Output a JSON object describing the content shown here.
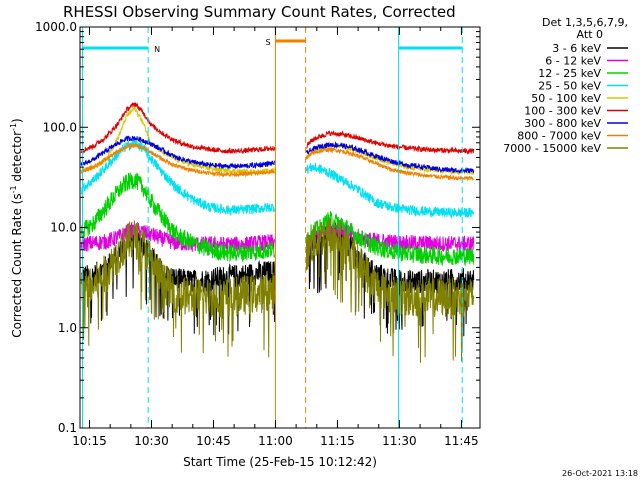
{
  "chart_data": {
    "type": "line",
    "title": "RHESSI Observing Summary Count Rates, Corrected",
    "xlabel": "Start Time (25-Feb-15 10:12:42)",
    "ylabel_parts": [
      "Corrected Count Rate (s",
      "-1",
      " detector",
      "-1",
      ")"
    ],
    "y_scale": "log",
    "ylim": [
      0.1,
      1000
    ],
    "xlim_minutes_after_10_00": [
      12.7,
      49.5
    ],
    "x_ticks": [
      {
        "minute": 15,
        "label": "10:15"
      },
      {
        "minute": 30,
        "label": "10:30"
      },
      {
        "minute": 45,
        "label": "10:45"
      },
      {
        "minute": 60,
        "label": "11:00"
      },
      {
        "minute": 75,
        "label": "11:15"
      },
      {
        "minute": 90,
        "label": "11:30"
      },
      {
        "minute": 105,
        "label": "11:45"
      }
    ],
    "y_ticks": [
      {
        "value": 0.1,
        "label": "0.1"
      },
      {
        "value": 1,
        "label": "1.0"
      },
      {
        "value": 10,
        "label": "10.0"
      },
      {
        "value": 100,
        "label": "100.0"
      },
      {
        "value": 1000,
        "label": "1000.0"
      }
    ],
    "legend_header": [
      "Det 1,3,5,6,7,9,",
      "Att 0"
    ],
    "timestamp": "26-Oct-2021 13:18",
    "data_gap_minutes": [
      59.8,
      67.5
    ],
    "series": [
      {
        "name": "3 - 6 keV",
        "color": "#000000",
        "points": [
          [
            13,
            3.2
          ],
          [
            16,
            3.3
          ],
          [
            19,
            4
          ],
          [
            22,
            5.5
          ],
          [
            24,
            7
          ],
          [
            26,
            8
          ],
          [
            28,
            7
          ],
          [
            30,
            5
          ],
          [
            33,
            3.4
          ],
          [
            36,
            3
          ],
          [
            40,
            2.9
          ],
          [
            44,
            3
          ],
          [
            48,
            3.2
          ],
          [
            52,
            3.3
          ],
          [
            56,
            3.5
          ],
          [
            59.8,
            3.6
          ],
          [
            67.5,
            6
          ],
          [
            69,
            7
          ],
          [
            71,
            8
          ],
          [
            73,
            9
          ],
          [
            76,
            8.5
          ],
          [
            80,
            5
          ],
          [
            84,
            3.5
          ],
          [
            88,
            3
          ],
          [
            92,
            2.9
          ],
          [
            96,
            2.9
          ],
          [
            100,
            2.9
          ],
          [
            104,
            3
          ],
          [
            108,
            3
          ]
        ]
      },
      {
        "name": "6 - 12 keV",
        "color": "#e000e0",
        "points": [
          [
            13,
            6.8
          ],
          [
            16,
            7
          ],
          [
            19,
            7.2
          ],
          [
            22,
            8
          ],
          [
            24,
            9
          ],
          [
            26,
            9.5
          ],
          [
            28,
            9
          ],
          [
            30,
            8.5
          ],
          [
            33,
            7.6
          ],
          [
            36,
            7
          ],
          [
            40,
            6.8
          ],
          [
            44,
            6.8
          ],
          [
            48,
            6.8
          ],
          [
            52,
            6.8
          ],
          [
            56,
            7
          ],
          [
            59.8,
            7.2
          ],
          [
            67.5,
            7
          ],
          [
            69,
            8
          ],
          [
            71,
            9
          ],
          [
            73,
            10
          ],
          [
            76,
            9.5
          ],
          [
            80,
            8
          ],
          [
            84,
            7.4
          ],
          [
            88,
            7.2
          ],
          [
            92,
            7
          ],
          [
            96,
            7
          ],
          [
            100,
            6.9
          ],
          [
            104,
            6.9
          ],
          [
            108,
            6.9
          ]
        ]
      },
      {
        "name": "12 - 25 keV",
        "color": "#00d000",
        "points": [
          [
            13,
            9
          ],
          [
            16,
            11
          ],
          [
            19,
            16
          ],
          [
            22,
            23
          ],
          [
            24,
            28
          ],
          [
            26,
            30
          ],
          [
            28,
            25
          ],
          [
            30,
            18
          ],
          [
            33,
            12
          ],
          [
            36,
            8.5
          ],
          [
            40,
            7
          ],
          [
            44,
            6
          ],
          [
            48,
            5.6
          ],
          [
            52,
            5.6
          ],
          [
            56,
            5.8
          ],
          [
            59.8,
            6
          ],
          [
            67.5,
            8
          ],
          [
            69,
            9
          ],
          [
            71,
            10
          ],
          [
            73,
            12
          ],
          [
            76,
            11
          ],
          [
            80,
            8
          ],
          [
            84,
            6.5
          ],
          [
            88,
            5.8
          ],
          [
            92,
            5.5
          ],
          [
            96,
            5.3
          ],
          [
            100,
            5.2
          ],
          [
            104,
            5.2
          ],
          [
            108,
            5.2
          ]
        ]
      },
      {
        "name": "25 - 50 keV",
        "color": "#00e0f0",
        "points": [
          [
            13,
            24
          ],
          [
            16,
            30
          ],
          [
            19,
            40
          ],
          [
            22,
            55
          ],
          [
            24,
            65
          ],
          [
            26,
            70
          ],
          [
            28,
            62
          ],
          [
            30,
            48
          ],
          [
            33,
            34
          ],
          [
            36,
            25
          ],
          [
            40,
            19
          ],
          [
            44,
            16
          ],
          [
            48,
            15
          ],
          [
            52,
            15
          ],
          [
            56,
            15.5
          ],
          [
            59.8,
            16
          ],
          [
            67.5,
            38
          ],
          [
            69,
            40
          ],
          [
            71,
            38
          ],
          [
            73,
            35
          ],
          [
            76,
            30
          ],
          [
            80,
            24
          ],
          [
            84,
            18
          ],
          [
            88,
            16
          ],
          [
            92,
            15
          ],
          [
            96,
            14.5
          ],
          [
            100,
            14.2
          ],
          [
            104,
            14
          ],
          [
            108,
            14
          ]
        ]
      },
      {
        "name": "50 - 100 keV",
        "color": "#d8c800",
        "points": [
          [
            13,
            37
          ],
          [
            16,
            40
          ],
          [
            19,
            48
          ],
          [
            22,
            80
          ],
          [
            24,
            130
          ],
          [
            26,
            155
          ],
          [
            28,
            110
          ],
          [
            30,
            68
          ],
          [
            33,
            55
          ],
          [
            36,
            48
          ],
          [
            40,
            42
          ],
          [
            44,
            39
          ],
          [
            48,
            37
          ],
          [
            52,
            36
          ],
          [
            56,
            36
          ],
          [
            59.8,
            37
          ],
          [
            67.5,
            50
          ],
          [
            69,
            57
          ],
          [
            71,
            62
          ],
          [
            73,
            66
          ],
          [
            76,
            65
          ],
          [
            80,
            58
          ],
          [
            84,
            50
          ],
          [
            88,
            44
          ],
          [
            92,
            40
          ],
          [
            96,
            38
          ],
          [
            100,
            37
          ],
          [
            104,
            36
          ],
          [
            108,
            36
          ]
        ]
      },
      {
        "name": "100 - 300 keV",
        "color": "#e00000",
        "points": [
          [
            13,
            58
          ],
          [
            16,
            65
          ],
          [
            19,
            80
          ],
          [
            22,
            110
          ],
          [
            24,
            150
          ],
          [
            26,
            172
          ],
          [
            28,
            140
          ],
          [
            30,
            105
          ],
          [
            33,
            85
          ],
          [
            36,
            72
          ],
          [
            40,
            64
          ],
          [
            44,
            60
          ],
          [
            48,
            58
          ],
          [
            52,
            58
          ],
          [
            56,
            60
          ],
          [
            59.8,
            62
          ],
          [
            67.5,
            65
          ],
          [
            69,
            75
          ],
          [
            71,
            82
          ],
          [
            73,
            87
          ],
          [
            76,
            85
          ],
          [
            80,
            78
          ],
          [
            84,
            70
          ],
          [
            88,
            65
          ],
          [
            92,
            62
          ],
          [
            96,
            60
          ],
          [
            100,
            59
          ],
          [
            104,
            58
          ],
          [
            108,
            58
          ]
        ]
      },
      {
        "name": "300 - 800 keV",
        "color": "#0000e0",
        "points": [
          [
            13,
            42
          ],
          [
            16,
            48
          ],
          [
            19,
            58
          ],
          [
            22,
            70
          ],
          [
            24,
            77
          ],
          [
            26,
            78
          ],
          [
            28,
            74
          ],
          [
            30,
            68
          ],
          [
            33,
            58
          ],
          [
            36,
            50
          ],
          [
            40,
            45
          ],
          [
            44,
            42
          ],
          [
            48,
            41
          ],
          [
            52,
            41
          ],
          [
            56,
            42
          ],
          [
            59.8,
            44
          ],
          [
            67.5,
            55
          ],
          [
            69,
            60
          ],
          [
            71,
            65
          ],
          [
            73,
            67
          ],
          [
            76,
            66
          ],
          [
            80,
            60
          ],
          [
            84,
            52
          ],
          [
            88,
            46
          ],
          [
            92,
            42
          ],
          [
            96,
            40
          ],
          [
            100,
            38
          ],
          [
            104,
            37
          ],
          [
            108,
            37
          ]
        ]
      },
      {
        "name": "800 - 7000 keV",
        "color": "#f08000",
        "points": [
          [
            13,
            36
          ],
          [
            16,
            40
          ],
          [
            19,
            48
          ],
          [
            22,
            58
          ],
          [
            24,
            64
          ],
          [
            26,
            66
          ],
          [
            28,
            62
          ],
          [
            30,
            56
          ],
          [
            33,
            47
          ],
          [
            36,
            41
          ],
          [
            40,
            37
          ],
          [
            44,
            35
          ],
          [
            48,
            34
          ],
          [
            52,
            34
          ],
          [
            56,
            35
          ],
          [
            59.8,
            36
          ],
          [
            67.5,
            50
          ],
          [
            69,
            55
          ],
          [
            71,
            58
          ],
          [
            73,
            60
          ],
          [
            76,
            58
          ],
          [
            80,
            52
          ],
          [
            84,
            44
          ],
          [
            88,
            38
          ],
          [
            92,
            35
          ],
          [
            96,
            33
          ],
          [
            100,
            32
          ],
          [
            104,
            31
          ],
          [
            108,
            31
          ]
        ]
      },
      {
        "name": "7000 - 15000 keV",
        "color": "#808000",
        "points": [
          [
            13,
            2.3
          ],
          [
            16,
            2.6
          ],
          [
            19,
            3.5
          ],
          [
            22,
            5.5
          ],
          [
            24,
            7
          ],
          [
            26,
            7.8
          ],
          [
            28,
            6.5
          ],
          [
            30,
            4.5
          ],
          [
            33,
            2.8
          ],
          [
            36,
            2.2
          ],
          [
            40,
            2
          ],
          [
            44,
            2
          ],
          [
            48,
            2
          ],
          [
            52,
            2.1
          ],
          [
            56,
            2.2
          ],
          [
            59.8,
            2.3
          ],
          [
            67.5,
            5.5
          ],
          [
            69,
            7
          ],
          [
            71,
            8
          ],
          [
            73,
            8.5
          ],
          [
            76,
            7.5
          ],
          [
            80,
            4.5
          ],
          [
            84,
            2.7
          ],
          [
            88,
            2.1
          ],
          [
            92,
            2
          ],
          [
            96,
            2
          ],
          [
            100,
            2
          ],
          [
            104,
            2
          ],
          [
            108,
            2
          ]
        ]
      }
    ],
    "annotations": [
      {
        "id": "N",
        "label": "N",
        "color": "#00e0f0",
        "bar_minutes": [
          13.3,
          29.2
        ],
        "start_minute": 13.3,
        "end_minute": 29.2
      },
      {
        "id": "S",
        "label": "S",
        "color": "#f08000",
        "bar_minutes": [
          60.0,
          67.3
        ],
        "start_minute": 60.0,
        "end_minute": 67.3
      },
      {
        "id": "N2",
        "label": "",
        "color": "#00e0f0",
        "bar_minutes": [
          89.8,
          105.2
        ],
        "start_minute": 89.8,
        "end_minute": 105.2
      }
    ]
  }
}
